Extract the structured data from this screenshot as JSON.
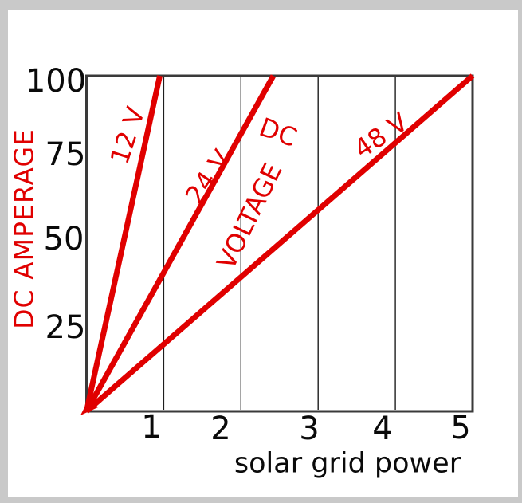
{
  "window": {
    "background_color": "#c9c9c9",
    "panel_color": "#ffffff"
  },
  "chart_data": {
    "type": "line",
    "title": "",
    "xlabel": "solar grid power",
    "ylabel": "DC AMPERAGE",
    "xlim": [
      0,
      5
    ],
    "ylim": [
      0,
      100
    ],
    "x_tick_labels": [
      "1",
      "2",
      "3",
      "4",
      "5"
    ],
    "y_tick_labels": [
      "100",
      "75",
      "50",
      "25"
    ],
    "grid_x": [
      1,
      2,
      3,
      4
    ],
    "grid": "vertical gridlines only, boxed plot border",
    "legend_position": "labels rotated along lines",
    "axis_color": "#3a3a3a",
    "grid_color": "#1e1e1e",
    "line_color": "#e00000",
    "text_color": "#0a0a0a",
    "accent_text_color": "#e00000",
    "series": [
      {
        "name": "12 V",
        "points": [
          [
            0,
            0
          ],
          [
            0.95,
            100
          ]
        ]
      },
      {
        "name": "24 V",
        "points": [
          [
            0,
            0
          ],
          [
            2.42,
            100
          ]
        ]
      },
      {
        "name": "48 V",
        "points": [
          [
            0,
            0
          ],
          [
            5,
            100
          ]
        ]
      }
    ],
    "annotations": [
      {
        "text": "DC"
      },
      {
        "text": "VOLTAGE"
      }
    ]
  }
}
